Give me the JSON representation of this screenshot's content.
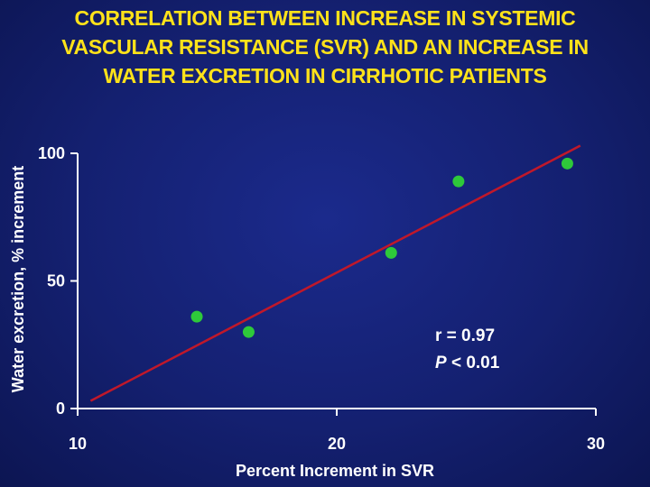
{
  "title": "CORRELATION BETWEEN INCREASE IN SYSTEMIC\nVASCULAR RESISTANCE (SVR) AND AN INCREASE IN\nWATER EXCRETION IN CIRRHOTIC PATIENTS",
  "colors": {
    "background": "#142070",
    "title": "#ffe21a",
    "axis": "#ffffff",
    "points": "#2ec93a",
    "fit_line": "#c0182a"
  },
  "chart_data": {
    "type": "scatter",
    "title": "CORRELATION BETWEEN INCREASE IN SYSTEMIC VASCULAR RESISTANCE (SVR) AND AN INCREASE IN WATER EXCRETION IN CIRRHOTIC PATIENTS",
    "xlabel": "Percent Increment in SVR",
    "ylabel": "Water excretion, % increment",
    "xlim": [
      10,
      30
    ],
    "ylim": [
      0,
      100
    ],
    "xticks": [
      10,
      20,
      30
    ],
    "yticks": [
      0,
      50,
      100
    ],
    "grid": false,
    "points": [
      {
        "x": 14.6,
        "y": 36
      },
      {
        "x": 16.6,
        "y": 30
      },
      {
        "x": 22.1,
        "y": 61
      },
      {
        "x": 24.7,
        "y": 89
      },
      {
        "x": 28.9,
        "y": 96
      }
    ],
    "fit_line": {
      "x": [
        10.5,
        29.4
      ],
      "y": [
        3,
        103
      ]
    },
    "annotations": {
      "r": "r = 0.97",
      "p_symbol": "P",
      "p_rest": " < 0.01"
    }
  }
}
